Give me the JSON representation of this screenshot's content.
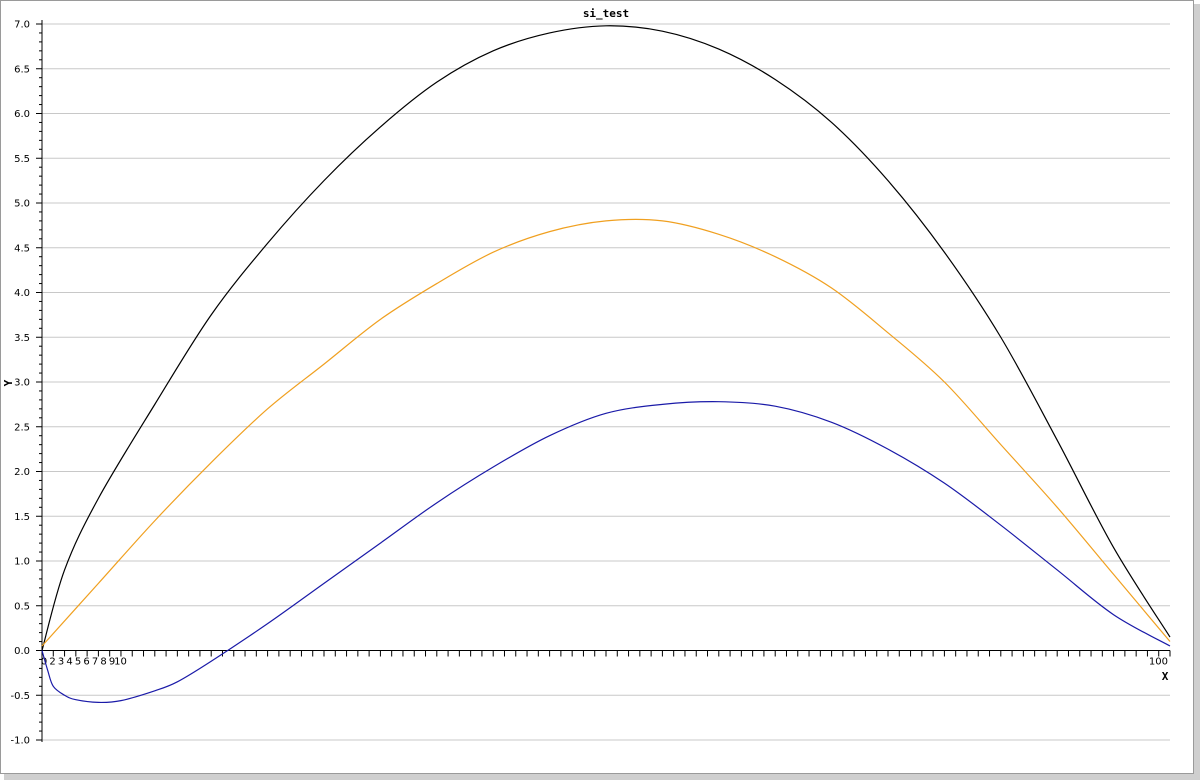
{
  "chart_data": {
    "type": "line",
    "title": "si_test",
    "xlabel": "X",
    "ylabel": "Y",
    "xlim": [
      0,
      100
    ],
    "ylim": [
      -1.0,
      7.0
    ],
    "y_ticks": [
      -1.0,
      -0.5,
      0.0,
      0.5,
      1.0,
      1.5,
      2.0,
      2.5,
      3.0,
      3.5,
      4.0,
      4.5,
      5.0,
      5.5,
      6.0,
      6.5,
      7.0
    ],
    "y_tick_labels": [
      "-1.0",
      "-0.5",
      "0.0",
      "0.5",
      "1.0",
      "1.5",
      "2.0",
      "2.5",
      "3.0",
      "3.5",
      "4.0",
      "4.5",
      "5.0",
      "5.5",
      "6.0",
      "6.5",
      "7.0"
    ],
    "x_ticks_visible_labels": [
      "0",
      "2",
      "3",
      "4",
      "5",
      "6",
      "7",
      "8",
      "9",
      "10"
    ],
    "x_ticks_end_label": "100",
    "grid": true,
    "legend": "none",
    "series": [
      {
        "color": "#000000",
        "x": [
          0,
          2,
          5,
          10,
          15,
          20,
          25,
          30,
          35,
          40,
          45,
          50,
          55,
          60,
          65,
          70,
          75,
          80,
          85,
          90,
          95,
          100
        ],
        "y": [
          0.0,
          0.9,
          1.7,
          2.75,
          3.75,
          4.55,
          5.25,
          5.85,
          6.35,
          6.7,
          6.9,
          6.98,
          6.92,
          6.72,
          6.38,
          5.9,
          5.25,
          4.45,
          3.5,
          2.35,
          1.15,
          0.15
        ]
      },
      {
        "color": "#f0a020",
        "x": [
          0,
          5,
          10,
          15,
          20,
          25,
          30,
          35,
          40,
          45,
          50,
          55,
          60,
          65,
          70,
          75,
          80,
          85,
          90,
          95,
          100
        ],
        "y": [
          0.05,
          0.75,
          1.45,
          2.1,
          2.7,
          3.2,
          3.7,
          4.1,
          4.45,
          4.68,
          4.8,
          4.8,
          4.65,
          4.4,
          4.05,
          3.55,
          3.0,
          2.3,
          1.6,
          0.85,
          0.1
        ]
      },
      {
        "color": "#1a1aa8",
        "x": [
          0,
          0.5,
          1,
          2,
          3,
          5,
          7,
          10,
          12,
          15,
          20,
          25,
          30,
          35,
          40,
          45,
          50,
          55,
          60,
          65,
          70,
          75,
          80,
          85,
          90,
          95,
          100
        ],
        "y": [
          0.0,
          -0.22,
          -0.4,
          -0.5,
          -0.55,
          -0.58,
          -0.56,
          -0.45,
          -0.35,
          -0.12,
          0.3,
          0.75,
          1.2,
          1.65,
          2.05,
          2.4,
          2.65,
          2.75,
          2.78,
          2.73,
          2.55,
          2.25,
          1.87,
          1.4,
          0.9,
          0.4,
          0.05
        ]
      }
    ]
  }
}
